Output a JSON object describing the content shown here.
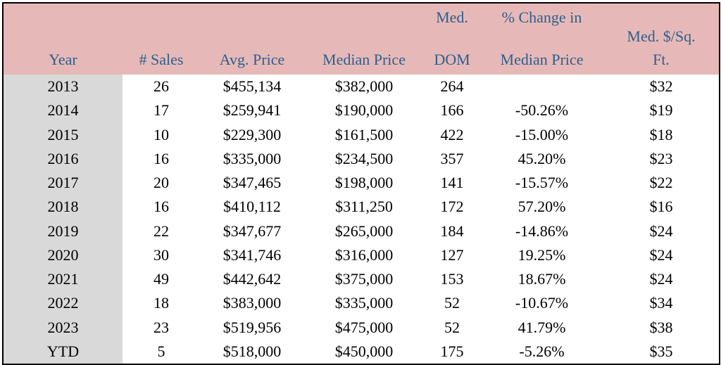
{
  "table": {
    "header": [
      [
        "Year"
      ],
      [
        "# Sales"
      ],
      [
        "Avg. Price"
      ],
      [
        "Median Price"
      ],
      [
        "Med.",
        "DOM"
      ],
      [
        "% Change in",
        "Median Price"
      ],
      [
        "Med. $/Sq.",
        "Ft."
      ]
    ],
    "rows": [
      [
        "2013",
        "26",
        "$455,134",
        "$382,000",
        "264",
        null,
        "$32"
      ],
      [
        "2014",
        "17",
        "$259,941",
        "$190,000",
        "166",
        "-50.26%",
        "$19"
      ],
      [
        "2015",
        "10",
        "$229,300",
        "$161,500",
        "422",
        "-15.00%",
        "$18"
      ],
      [
        "2016",
        "16",
        "$335,000",
        "$234,500",
        "357",
        "45.20%",
        "$23"
      ],
      [
        "2017",
        "20",
        "$347,465",
        "$198,000",
        "141",
        "-15.57%",
        "$22"
      ],
      [
        "2018",
        "16",
        "$410,112",
        "$311,250",
        "172",
        "57.20%",
        "$16"
      ],
      [
        "2019",
        "22",
        "$347,677",
        "$265,000",
        "184",
        "-14.86%",
        "$24"
      ],
      [
        "2020",
        "30",
        "$341,746",
        "$316,000",
        "127",
        "19.25%",
        "$24"
      ],
      [
        "2021",
        "49",
        "$442,642",
        "$375,000",
        "153",
        "18.67%",
        "$24"
      ],
      [
        "2022",
        "18",
        "$383,000",
        "$335,000",
        "52",
        "-10.67%",
        "$34"
      ],
      [
        "2023",
        "23",
        "$519,956",
        "$475,000",
        "52",
        "41.79%",
        "$38"
      ],
      [
        "YTD",
        "5",
        "$518,000",
        "$450,000",
        "175",
        "-5.26%",
        "$35"
      ]
    ]
  }
}
